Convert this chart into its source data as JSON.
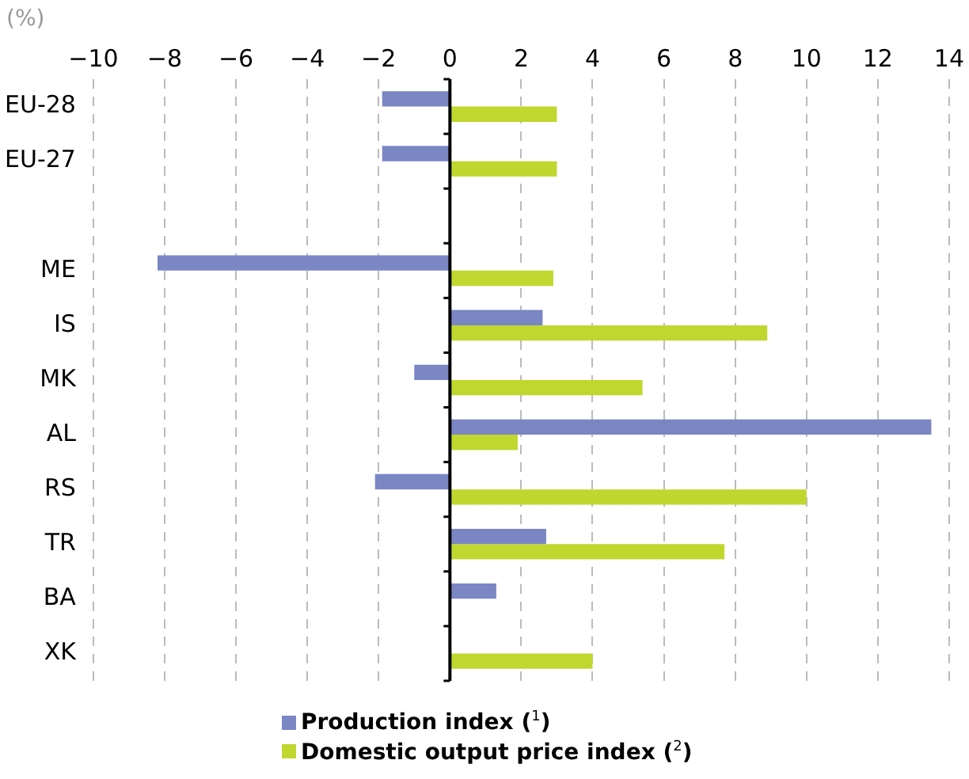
{
  "chart_data": {
    "type": "bar",
    "orientation": "horizontal",
    "xlabel": "(%)",
    "categories": [
      "EU-28",
      "EU-27",
      null,
      "ME",
      "IS",
      "MK",
      "AL",
      "RS",
      "TR",
      "BA",
      "XK"
    ],
    "series": [
      {
        "name": "Production index ($^{1}$)",
        "color": "#7b86c4",
        "values": [
          -1.9,
          -1.9,
          null,
          -8.2,
          2.6,
          -1.0,
          13.5,
          -2.1,
          2.7,
          1.3,
          null
        ]
      },
      {
        "name": "Domestic output price index ($^{2}$)",
        "color": "#c0d72f",
        "values": [
          3.0,
          3.0,
          null,
          2.9,
          8.9,
          5.4,
          1.9,
          10.0,
          7.7,
          null,
          4.0
        ]
      }
    ],
    "xlim": [
      -10,
      14
    ],
    "xticks": [
      -10,
      -8,
      -6,
      -4,
      -2,
      0,
      2,
      4,
      6,
      8,
      10,
      12,
      14
    ],
    "grid": "x",
    "legend": "bottom"
  }
}
